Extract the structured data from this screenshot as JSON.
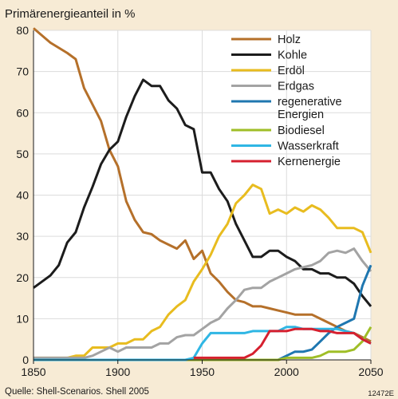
{
  "chart_data": {
    "type": "line",
    "title": "",
    "ylabel": "Primärenergieanteil in %",
    "xlabel": "",
    "xlim": [
      1850,
      2050
    ],
    "ylim": [
      0,
      80
    ],
    "xticks": [
      "1850",
      "1900",
      "1950",
      "2000",
      "2050"
    ],
    "yticks": [
      "0",
      "10",
      "20",
      "30",
      "40",
      "50",
      "60",
      "70",
      "80"
    ],
    "grid": true,
    "legend_position": "top-right",
    "series": [
      {
        "name": "Holz",
        "color": "#b5702a",
        "x": [
          1850,
          1860,
          1870,
          1875,
          1880,
          1885,
          1890,
          1895,
          1900,
          1905,
          1910,
          1915,
          1920,
          1925,
          1930,
          1935,
          1940,
          1945,
          1950,
          1955,
          1960,
          1965,
          1970,
          1975,
          1980,
          1985,
          1990,
          1995,
          2000,
          2005,
          2010,
          2015,
          2020,
          2025,
          2030,
          2035,
          2040,
          2045,
          2050
        ],
        "y": [
          80.5,
          77,
          74.5,
          73,
          66,
          62,
          58,
          51,
          47,
          38.5,
          34,
          31,
          30.5,
          29,
          28,
          27,
          29,
          24.5,
          26.5,
          21,
          19,
          16.5,
          14.5,
          14,
          13,
          13,
          12.5,
          12,
          11.5,
          11,
          11,
          11,
          10,
          9,
          8,
          7,
          6.5,
          5.5,
          4.5
        ]
      },
      {
        "name": "Kohle",
        "color": "#1c1c1c",
        "x": [
          1850,
          1860,
          1865,
          1870,
          1875,
          1880,
          1885,
          1890,
          1895,
          1900,
          1905,
          1910,
          1915,
          1920,
          1925,
          1930,
          1935,
          1940,
          1945,
          1950,
          1955,
          1960,
          1965,
          1970,
          1975,
          1980,
          1985,
          1990,
          1995,
          2000,
          2005,
          2010,
          2015,
          2020,
          2025,
          2030,
          2035,
          2040,
          2045,
          2050
        ],
        "y": [
          17.5,
          20.5,
          23,
          28.5,
          31,
          37,
          42,
          47.5,
          51,
          53,
          59,
          64,
          68,
          66.5,
          66.5,
          63,
          61,
          57,
          56,
          45.5,
          45.5,
          41.5,
          38.5,
          33,
          29,
          25,
          25,
          26.5,
          26.5,
          25,
          24,
          22,
          22,
          21,
          21,
          20,
          20,
          18.5,
          15.5,
          13
        ]
      },
      {
        "name": "Erdöl",
        "color": "#e8bc1f",
        "x": [
          1850,
          1870,
          1875,
          1880,
          1885,
          1890,
          1895,
          1900,
          1905,
          1910,
          1915,
          1920,
          1925,
          1930,
          1935,
          1940,
          1945,
          1950,
          1955,
          1960,
          1965,
          1970,
          1975,
          1980,
          1985,
          1990,
          1995,
          2000,
          2005,
          2010,
          2015,
          2020,
          2025,
          2030,
          2035,
          2040,
          2045,
          2050
        ],
        "y": [
          0.5,
          0.5,
          1,
          1,
          3,
          3,
          3,
          4,
          4,
          5,
          5,
          7,
          8,
          11,
          13,
          14.5,
          19,
          22,
          25.5,
          30,
          33,
          38,
          40,
          42.5,
          41.5,
          35.5,
          36.5,
          35.5,
          37,
          36,
          37.5,
          36.5,
          34.5,
          32,
          32,
          32,
          31,
          26
        ]
      },
      {
        "name": "Erdgas",
        "color": "#a3a3a3",
        "x": [
          1850,
          1880,
          1885,
          1890,
          1895,
          1900,
          1905,
          1910,
          1915,
          1920,
          1925,
          1930,
          1935,
          1940,
          1945,
          1950,
          1955,
          1960,
          1965,
          1970,
          1975,
          1980,
          1985,
          1990,
          1995,
          2000,
          2005,
          2010,
          2015,
          2020,
          2025,
          2030,
          2035,
          2040,
          2045,
          2050
        ],
        "y": [
          0.5,
          0.5,
          1,
          2,
          3,
          2,
          3,
          3,
          3,
          3,
          4,
          4,
          5.5,
          6,
          6,
          7.5,
          9,
          10,
          12.5,
          14.5,
          17,
          17.5,
          17.5,
          19,
          20,
          21,
          22,
          22.5,
          23,
          24,
          26,
          26.5,
          26,
          27,
          24,
          21.5
        ]
      },
      {
        "name": "regenerative Energien",
        "color": "#1f77b0",
        "x": [
          1850,
          1995,
          2000,
          2005,
          2010,
          2015,
          2020,
          2025,
          2030,
          2035,
          2040,
          2045,
          2050
        ],
        "y": [
          0,
          0,
          1,
          2,
          2,
          2.5,
          4.5,
          6.5,
          8,
          9,
          10,
          18,
          23
        ]
      },
      {
        "name": "Biodiesel",
        "color": "#9fbe27",
        "x": [
          1850,
          1995,
          2000,
          2005,
          2010,
          2015,
          2020,
          2025,
          2030,
          2035,
          2040,
          2045,
          2050
        ],
        "y": [
          0,
          0,
          0.5,
          0.5,
          0.5,
          0.5,
          1,
          2,
          2,
          2,
          2.5,
          4.5,
          8
        ]
      },
      {
        "name": "Wasserkraft",
        "color": "#2fb6e4",
        "x": [
          1850,
          1940,
          1945,
          1950,
          1955,
          1960,
          1965,
          1970,
          1975,
          1980,
          1985,
          1990,
          1995,
          2000,
          2005,
          2010,
          2015,
          2020,
          2025,
          2030,
          2035,
          2040,
          2045,
          2050
        ],
        "y": [
          0,
          0,
          0.5,
          4,
          6.5,
          6.5,
          6.5,
          6.5,
          6.5,
          7,
          7,
          7,
          7,
          8,
          8,
          7.5,
          7.5,
          7.5,
          7.5,
          7.5,
          7,
          6.5,
          5,
          4
        ]
      },
      {
        "name": "Kernenergie",
        "color": "#d6202f",
        "x": [
          1945,
          1970,
          1975,
          1980,
          1985,
          1990,
          1995,
          2000,
          2005,
          2010,
          2015,
          2020,
          2025,
          2030,
          2035,
          2040,
          2045,
          2050
        ],
        "y": [
          0.5,
          0.5,
          0.5,
          1.5,
          3.5,
          7,
          7,
          7,
          7.5,
          7.5,
          7.5,
          7,
          7,
          6.5,
          6.5,
          6.5,
          5,
          4
        ]
      }
    ],
    "legend": [
      {
        "label": "Holz",
        "color": "#b5702a"
      },
      {
        "label": "Kohle",
        "color": "#1c1c1c"
      },
      {
        "label": "Erdöl",
        "color": "#e8bc1f"
      },
      {
        "label": "Erdgas",
        "color": "#a3a3a3"
      },
      {
        "label": "regenerative\nEnergien",
        "color": "#1f77b0"
      },
      {
        "label": "Biodiesel",
        "color": "#9fbe27"
      },
      {
        "label": "Wasserkraft",
        "color": "#2fb6e4"
      },
      {
        "label": "Kernenergie",
        "color": "#d6202f"
      }
    ]
  },
  "source": "Quelle: Shell-Scenarios. Shell 2005",
  "code": "12472E",
  "colors": {
    "background": "#f7ebd5",
    "plot_background": "#ffffff",
    "grid": "#dcdcdc"
  }
}
